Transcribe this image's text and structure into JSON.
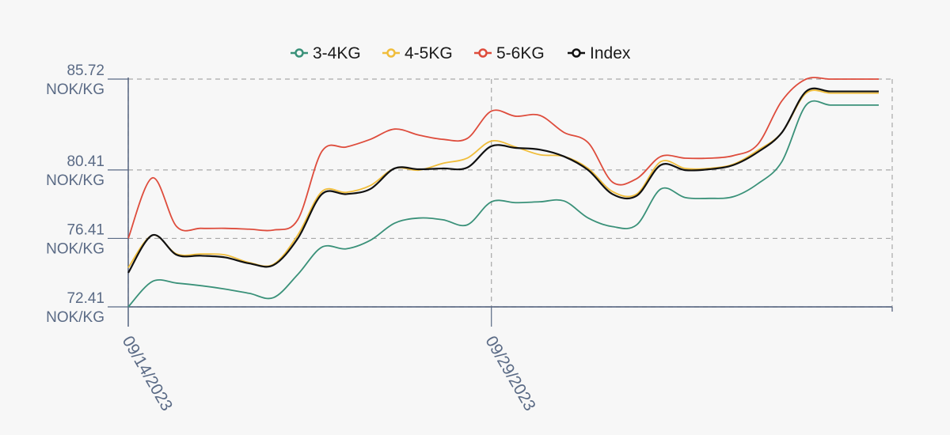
{
  "chart_data": {
    "type": "line",
    "title": "",
    "xlabel": "",
    "ylabel": "",
    "legend_position": "top-center",
    "grid": true,
    "x": [
      "09/14/2023",
      "09/15/2023",
      "09/16/2023",
      "09/17/2023",
      "09/18/2023",
      "09/19/2023",
      "09/20/2023",
      "09/21/2023",
      "09/22/2023",
      "09/23/2023",
      "09/24/2023",
      "09/25/2023",
      "09/26/2023",
      "09/27/2023",
      "09/28/2023",
      "09/29/2023",
      "09/30/2023",
      "10/01/2023",
      "10/02/2023",
      "10/03/2023",
      "10/04/2023",
      "10/05/2023",
      "10/06/2023",
      "10/07/2023",
      "10/08/2023",
      "10/09/2023",
      "10/10/2023",
      "10/11/2023",
      "10/12/2023",
      "10/13/2023",
      "10/14/2023",
      "10/15/2023"
    ],
    "x_ticks": [
      {
        "label": "09/14/2023",
        "index": 0
      },
      {
        "label": "09/29/2023",
        "index": 15
      }
    ],
    "y_ticks": [
      {
        "value": 72.41,
        "line1": "72.41",
        "line2": "NOK/KG"
      },
      {
        "value": 76.41,
        "line1": "76.41",
        "line2": "NOK/KG"
      },
      {
        "value": 80.41,
        "line1": "80.41",
        "line2": "NOK/KG"
      },
      {
        "value": 85.72,
        "line1": "85.72",
        "line2": "NOK/KG"
      }
    ],
    "ylim": [
      72.41,
      85.72
    ],
    "series": [
      {
        "name": "3-4KG",
        "color": "#3a9179",
        "values": [
          72.41,
          73.9,
          73.8,
          73.65,
          73.45,
          73.2,
          72.95,
          74.3,
          75.9,
          75.8,
          76.3,
          77.3,
          77.6,
          77.5,
          77.2,
          78.55,
          78.5,
          78.55,
          78.6,
          77.6,
          77.1,
          77.2,
          79.3,
          78.8,
          78.75,
          78.85,
          79.6,
          80.9,
          84.2,
          84.2,
          84.2,
          84.2
        ]
      },
      {
        "name": "4-5KG",
        "color": "#f0bd3b",
        "values": [
          74.7,
          76.6,
          75.5,
          75.5,
          75.45,
          75.0,
          74.9,
          76.6,
          79.15,
          79.1,
          79.5,
          80.5,
          80.4,
          80.8,
          81.1,
          82.1,
          81.75,
          81.3,
          81.2,
          80.5,
          79.15,
          79.0,
          80.9,
          80.5,
          80.5,
          80.75,
          81.55,
          82.6,
          84.9,
          84.9,
          84.9,
          84.9
        ]
      },
      {
        "name": "5-6KG",
        "color": "#de4c3c",
        "values": [
          76.41,
          79.95,
          77.1,
          77.0,
          77.0,
          76.95,
          76.9,
          77.5,
          81.5,
          81.75,
          82.2,
          82.8,
          82.45,
          82.2,
          82.25,
          83.85,
          83.55,
          83.6,
          82.6,
          82.0,
          79.7,
          79.9,
          81.2,
          81.1,
          81.1,
          81.25,
          81.9,
          84.45,
          85.72,
          85.72,
          85.72,
          85.72
        ]
      },
      {
        "name": "Index",
        "color": "#111111",
        "values": [
          74.4,
          76.6,
          75.45,
          75.4,
          75.3,
          74.95,
          74.85,
          76.4,
          79.0,
          79.0,
          79.3,
          80.5,
          80.45,
          80.5,
          80.55,
          81.8,
          81.7,
          81.6,
          81.2,
          80.4,
          79.0,
          78.9,
          80.7,
          80.4,
          80.45,
          80.7,
          81.45,
          82.6,
          85.0,
          85.0,
          85.0,
          85.0
        ]
      }
    ]
  }
}
